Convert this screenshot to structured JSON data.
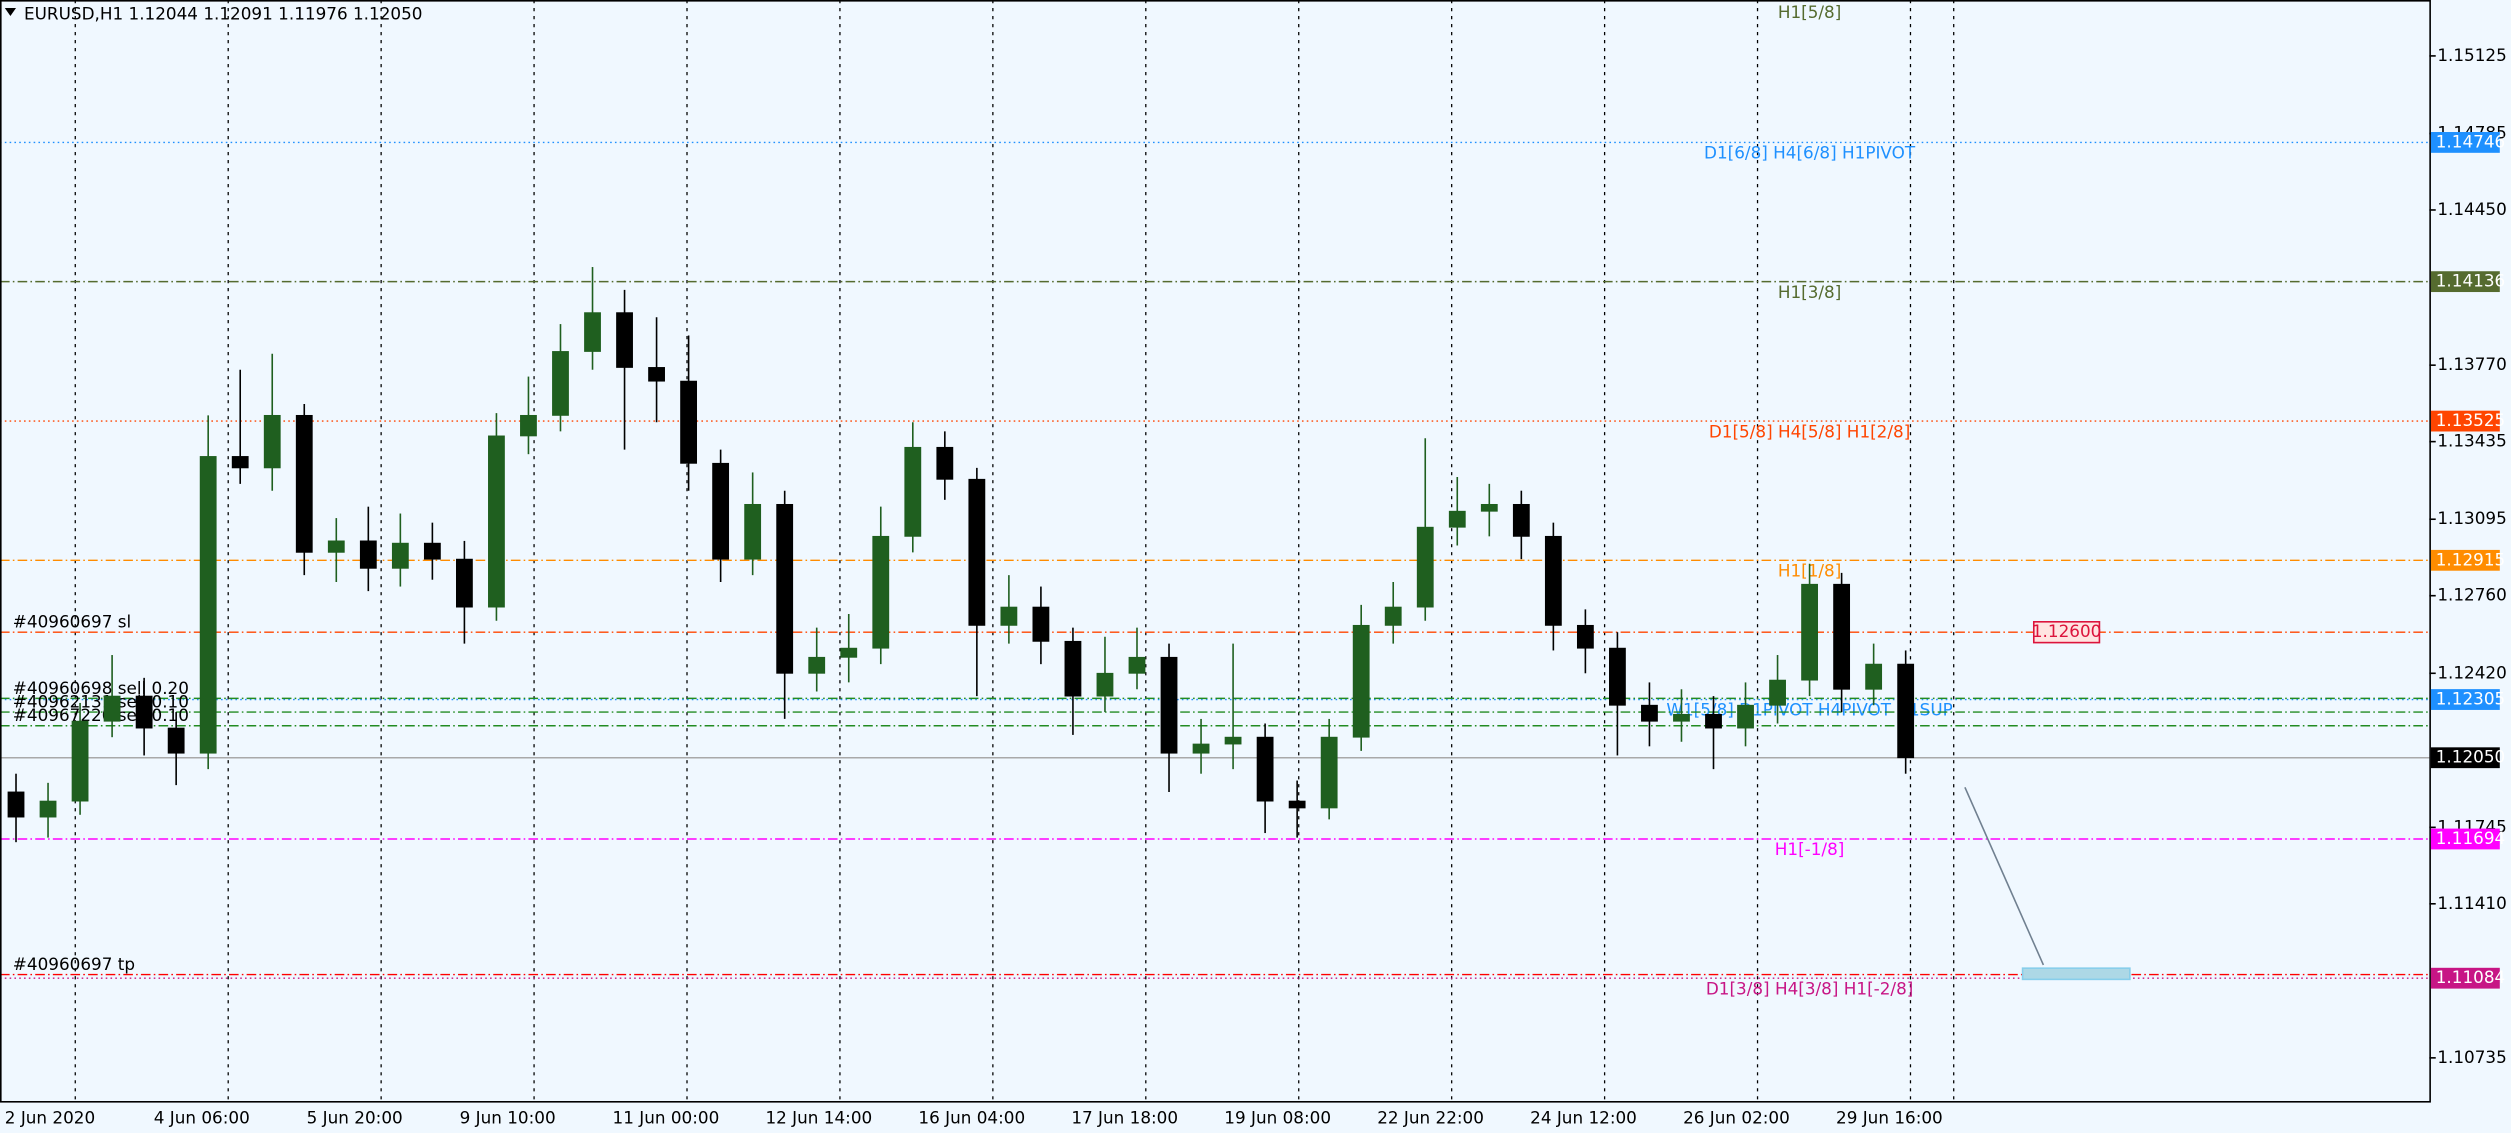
{
  "chart_data": {
    "type": "candlestick",
    "title": "EURUSD,H1  1.12044 1.12091 1.11976 1.12050",
    "open": [
      1.119,
      1.1179,
      1.1186,
      1.1221,
      1.1232,
      1.1218,
      1.1207,
      1.1337,
      1.1332,
      1.1355,
      1.1295,
      1.13,
      1.1288,
      1.1299,
      1.1292,
      1.1271,
      1.1346,
      1.1355,
      1.1383,
      1.14,
      1.1376,
      1.137,
      1.1334,
      1.1292,
      1.1316,
      1.1242,
      1.1249,
      1.1253,
      1.1302,
      1.1341,
      1.1327,
      1.1263,
      1.1271,
      1.1256,
      1.1232,
      1.1242,
      1.1249,
      1.1207,
      1.1211,
      1.1214,
      1.1186,
      1.1183,
      1.1214,
      1.1263,
      1.1271,
      1.1306,
      1.1313,
      1.1316,
      1.1302,
      1.1263,
      1.1253,
      1.1228,
      1.1221,
      1.1224,
      1.1218,
      1.1228,
      1.1239,
      1.1281,
      1.1235,
      1.1246
    ],
    "high": [
      1.1198,
      1.1194,
      1.1229,
      1.125,
      1.124,
      1.1225,
      1.1355,
      1.1375,
      1.1382,
      1.136,
      1.131,
      1.1315,
      1.1312,
      1.1308,
      1.13,
      1.1356,
      1.1372,
      1.1395,
      1.142,
      1.141,
      1.1398,
      1.139,
      1.134,
      1.133,
      1.1322,
      1.1262,
      1.1268,
      1.1315,
      1.1352,
      1.1348,
      1.1332,
      1.1285,
      1.128,
      1.1262,
      1.1258,
      1.1262,
      1.1255,
      1.1222,
      1.1255,
      1.122,
      1.1195,
      1.1222,
      1.1272,
      1.1282,
      1.1345,
      1.1328,
      1.1325,
      1.1322,
      1.1308,
      1.127,
      1.126,
      1.1238,
      1.1235,
      1.1232,
      1.1238,
      1.125,
      1.129,
      1.1286,
      1.1255,
      1.1252
    ],
    "low": [
      1.1168,
      1.117,
      1.118,
      1.1214,
      1.1206,
      1.1193,
      1.12,
      1.1325,
      1.1322,
      1.1285,
      1.1282,
      1.1278,
      1.128,
      1.1283,
      1.1255,
      1.1265,
      1.1338,
      1.1348,
      1.1375,
      1.134,
      1.1352,
      1.1322,
      1.1282,
      1.1285,
      1.1222,
      1.1234,
      1.1238,
      1.1246,
      1.1295,
      1.1318,
      1.1232,
      1.1255,
      1.1246,
      1.1215,
      1.1225,
      1.1235,
      1.119,
      1.1198,
      1.12,
      1.1172,
      1.117,
      1.1178,
      1.1208,
      1.1255,
      1.1265,
      1.1298,
      1.1302,
      1.1292,
      1.1252,
      1.1242,
      1.1206,
      1.121,
      1.1212,
      1.12,
      1.121,
      1.122,
      1.1232,
      1.1225,
      1.1228,
      1.1198
    ],
    "close": [
      1.1179,
      1.1186,
      1.1221,
      1.1232,
      1.1218,
      1.1207,
      1.1337,
      1.1332,
      1.1355,
      1.1295,
      1.13,
      1.1288,
      1.1299,
      1.1292,
      1.1271,
      1.1346,
      1.1355,
      1.1383,
      1.14,
      1.1376,
      1.137,
      1.1334,
      1.1292,
      1.1316,
      1.1242,
      1.1249,
      1.1253,
      1.1302,
      1.1341,
      1.1327,
      1.1263,
      1.1271,
      1.1256,
      1.1232,
      1.1242,
      1.1249,
      1.1207,
      1.1211,
      1.1214,
      1.1186,
      1.1183,
      1.1214,
      1.1263,
      1.1271,
      1.1306,
      1.1313,
      1.1316,
      1.1302,
      1.1263,
      1.1253,
      1.1228,
      1.1221,
      1.1224,
      1.1218,
      1.1228,
      1.1239,
      1.1281,
      1.1235,
      1.1246,
      1.1205
    ],
    "bull_color": "#1f5f1f",
    "bear_color": "#000000",
    "ylim": [
      1.10546,
      1.1537
    ],
    "yticks": [
      1.15125,
      1.14785,
      {
        "value": 1.1445,
        "label": "1.14450"
      },
      {
        "value": 1.1377,
        "label": "1.13770"
      },
      1.13435,
      1.13095,
      {
        "value": 1.1276,
        "label": "1.12760"
      },
      {
        "value": 1.1242,
        "label": "1.12420"
      },
      1.11745,
      {
        "value": 1.1141,
        "label": "1.11410"
      },
      1.10735
    ],
    "xtick_labels": [
      "2 Jun 2020",
      "4 Jun 06:00",
      "5 Jun 20:00",
      "9 Jun 10:00",
      "11 Jun 00:00",
      "12 Jun 14:00",
      "16 Jun 04:00",
      "17 Jun 18:00",
      "19 Jun 08:00",
      "22 Jun 22:00",
      "24 Jun 12:00",
      "26 Jun 02:00",
      "29 Jun 16:00"
    ],
    "top_label": "H1[5/8]",
    "top_label_color": "#556b2f",
    "levels": [
      {
        "value": 1.14746,
        "label": "D1[6/8] H4[6/8] H1PIVOT",
        "color": "#1e90ff",
        "style": "dotted"
      },
      {
        "value": 1.14136,
        "label": "H1[3/8]",
        "color": "#556b2f",
        "style": "dashdot"
      },
      {
        "value": 1.13525,
        "label": "D1[5/8] H4[5/8] H1[2/8]",
        "color": "#ff4500",
        "style": "dotted"
      },
      {
        "value": 1.12915,
        "label": "H1[1/8]",
        "color": "#ff8c00",
        "style": "dashdot"
      },
      {
        "value": 1.12305,
        "label": "W1[5/8] D1PIVOT H4PIVOT H1SUP",
        "color": "#1e90ff",
        "style": "dotted"
      },
      {
        "value": 1.1205,
        "value_label": "1.12050",
        "color": "#000000",
        "style": "solid"
      },
      {
        "value": 1.11694,
        "label": "H1[-1/8]",
        "color": "#ff00ff",
        "style": "dashdot"
      },
      {
        "value": 1.11084,
        "label": "D1[3/8] H4[3/8] H1[-2/8]",
        "color": "#c71585",
        "style": "dotted"
      }
    ],
    "orders": [
      {
        "label": "#40960697 sl",
        "value": 1.126,
        "color": "#ff4500"
      },
      {
        "label": "#40960698 sell 0.20",
        "value": 1.1231,
        "color": "#228b22"
      },
      {
        "label": "#40962131 sell 0.10",
        "value": 1.1225,
        "color": "#228b22"
      },
      {
        "label": "#40967220 sell 0.10",
        "value": 1.1219,
        "color": "#228b22"
      },
      {
        "label": "#40960697 tp",
        "value": 1.111,
        "color": "#ff0000"
      }
    ],
    "stop_box": {
      "value": 1.126,
      "value_label": "1.12600",
      "color": "#dc143c"
    }
  }
}
